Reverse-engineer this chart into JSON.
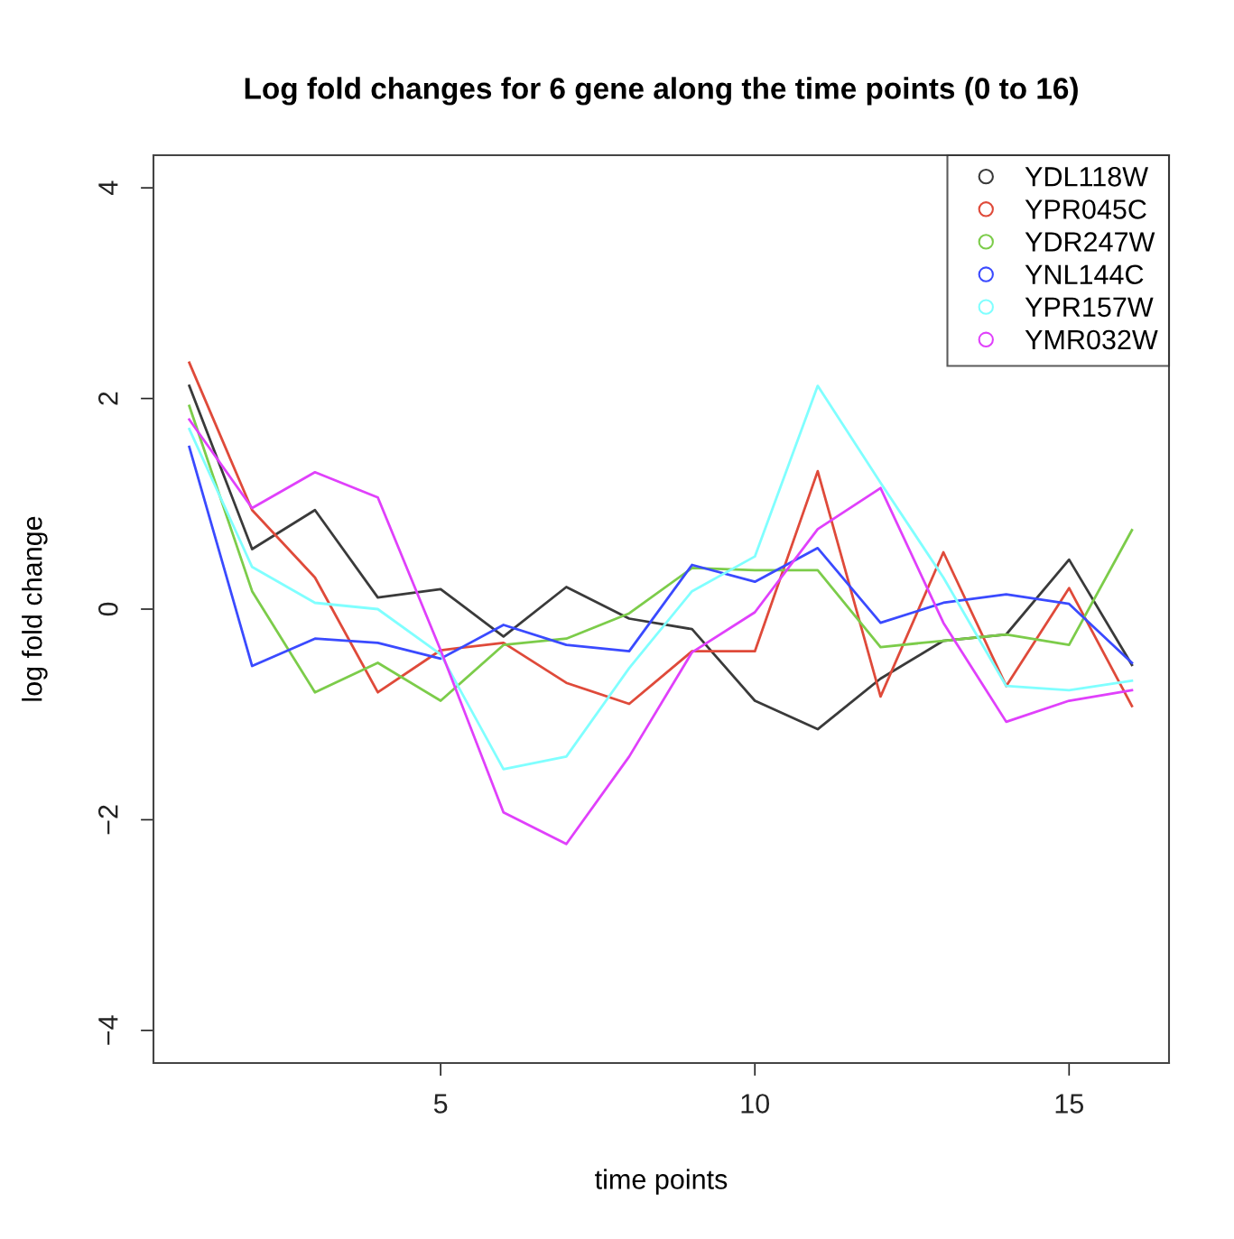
{
  "chart_data": {
    "type": "line",
    "title": "Log fold changes for 6 gene along the time points (0 to 16)",
    "xlabel": "time points",
    "ylabel": "log fold change",
    "x": [
      1,
      2,
      3,
      4,
      5,
      6,
      7,
      8,
      9,
      10,
      11,
      12,
      13,
      14,
      15,
      16
    ],
    "series": [
      {
        "name": "YDL118W",
        "color": "#3a3a3a",
        "values": [
          2.12,
          0.57,
          0.94,
          0.11,
          0.19,
          -0.26,
          0.21,
          -0.09,
          -0.19,
          -0.87,
          -1.14,
          -0.66,
          -0.3,
          -0.24,
          0.47,
          -0.53
        ]
      },
      {
        "name": "YPR045C",
        "color": "#df4a3a",
        "values": [
          2.34,
          0.94,
          0.3,
          -0.79,
          -0.39,
          -0.32,
          -0.7,
          -0.9,
          -0.4,
          -0.4,
          1.31,
          -0.83,
          0.54,
          -0.73,
          0.2,
          -0.92
        ]
      },
      {
        "name": "YDR247W",
        "color": "#7ccc4a",
        "values": [
          1.93,
          0.17,
          -0.79,
          -0.51,
          -0.87,
          -0.34,
          -0.28,
          -0.04,
          0.39,
          0.37,
          0.37,
          -0.36,
          -0.3,
          -0.24,
          -0.34,
          0.75
        ]
      },
      {
        "name": "YNL144C",
        "color": "#3a4aff",
        "values": [
          1.54,
          -0.54,
          -0.28,
          -0.32,
          -0.47,
          -0.15,
          -0.34,
          -0.4,
          0.42,
          0.26,
          0.58,
          -0.13,
          0.06,
          0.14,
          0.05,
          -0.51
        ]
      },
      {
        "name": "YPR157W",
        "color": "#80ffff",
        "values": [
          1.71,
          0.4,
          0.06,
          0.0,
          -0.43,
          -1.52,
          -1.4,
          -0.56,
          0.17,
          0.5,
          2.12,
          1.2,
          0.3,
          -0.73,
          -0.77,
          -0.68
        ]
      },
      {
        "name": "YMR032W",
        "color": "#e040fb",
        "values": [
          1.8,
          0.96,
          1.3,
          1.06,
          -0.39,
          -1.93,
          -2.23,
          -1.4,
          -0.41,
          -0.03,
          0.76,
          1.15,
          -0.13,
          -1.07,
          -0.87,
          -0.77
        ]
      }
    ],
    "xlim": [
      0.43,
      16.59
    ],
    "ylim": [
      -4.31,
      4.31
    ],
    "xticks": [
      5,
      10,
      15
    ],
    "yticks": [
      {
        "value": -4,
        "label": "−4"
      },
      {
        "value": -2,
        "label": "−2"
      },
      0,
      2,
      4
    ],
    "grid": false,
    "legend": "top right",
    "line_style": "solid"
  }
}
